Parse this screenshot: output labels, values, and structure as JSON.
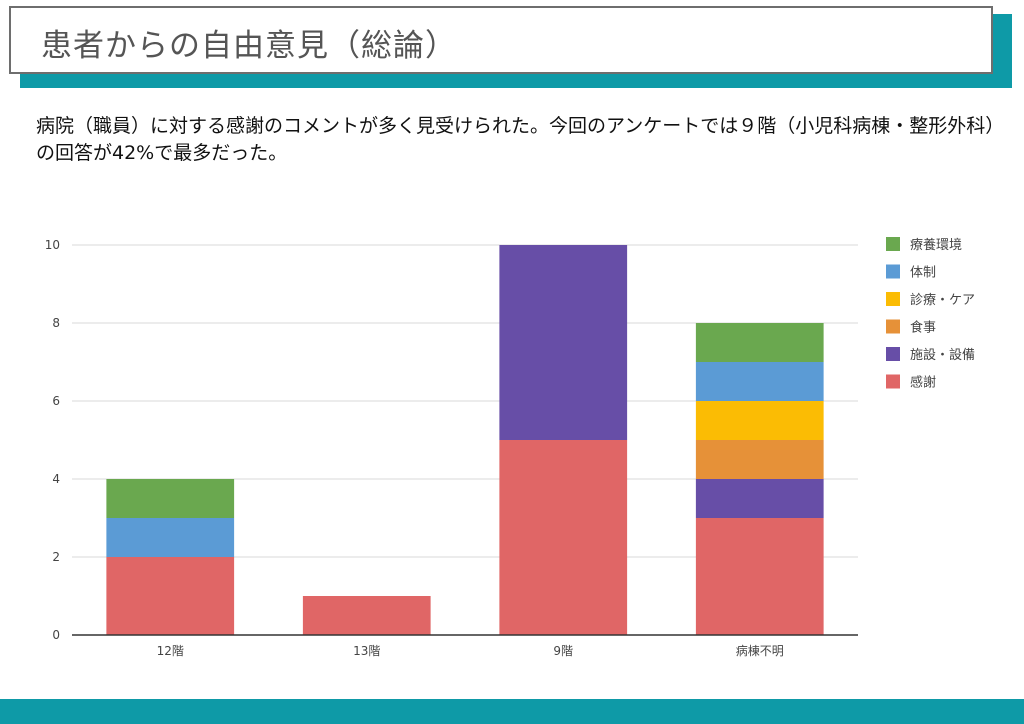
{
  "title": "患者からの自由意見（総論）",
  "summary": "病院（職員）に対する感謝のコメントが多く見受けられた。今回のアンケートでは９階（小児科病棟・整形外科）の回答が42%で最多だった。",
  "colors": {
    "accent": "#0e9aa7"
  },
  "chart_data": {
    "type": "bar",
    "stacked": true,
    "title": "",
    "xlabel": "",
    "ylabel": "",
    "categories": [
      "12階",
      "13階",
      "9階",
      "病棟不明"
    ],
    "ylim": [
      0,
      10
    ],
    "yticks": [
      0,
      2,
      4,
      6,
      8,
      10
    ],
    "grid": true,
    "legend_position": "right",
    "series": [
      {
        "name": "感謝",
        "color": "#e06666",
        "values": [
          2,
          1,
          5,
          3
        ]
      },
      {
        "name": "施設・設備",
        "color": "#674ea7",
        "values": [
          0,
          0,
          5,
          1
        ]
      },
      {
        "name": "食事",
        "color": "#e69138",
        "values": [
          0,
          0,
          0,
          1
        ]
      },
      {
        "name": "診療・ケア",
        "color": "#fbbc04",
        "values": [
          0,
          0,
          0,
          1
        ]
      },
      {
        "name": "体制",
        "color": "#5b9bd5",
        "values": [
          1,
          0,
          0,
          1
        ]
      },
      {
        "name": "療養環境",
        "color": "#6aa84f",
        "values": [
          1,
          0,
          0,
          1
        ]
      }
    ]
  }
}
